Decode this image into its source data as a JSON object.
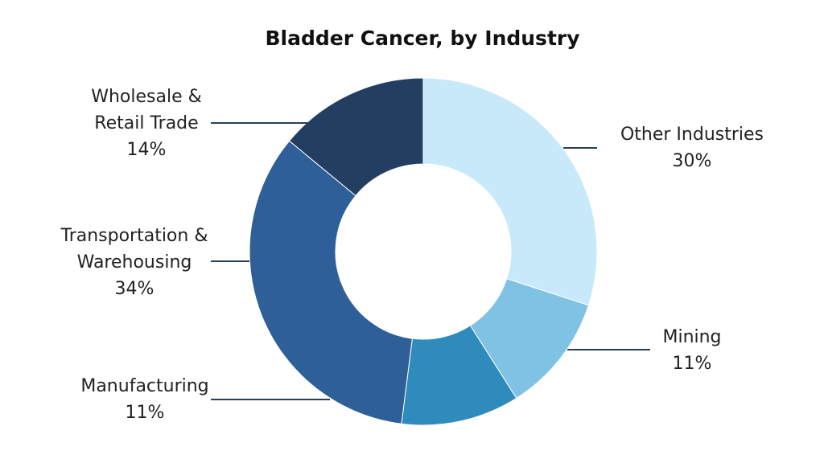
{
  "chart_data": {
    "type": "pie",
    "title": "Bladder Cancer, by Industry",
    "unit": "%",
    "slices": [
      {
        "label": "Other Industries",
        "value": 30,
        "color": "#c7e9f9"
      },
      {
        "label": "Mining",
        "value": 11,
        "color": "#80c2e4"
      },
      {
        "label": "Manufacturing",
        "value": 11,
        "color": "#2f8bbc"
      },
      {
        "label": "Transportation & Warehousing",
        "value": 34,
        "color": "#2e5f98"
      },
      {
        "label": "Wholesale & Retail Trade",
        "value": 14,
        "color": "#223f62"
      }
    ],
    "label_text": [
      {
        "lines": [
          "Other Industries"
        ],
        "value": "30%"
      },
      {
        "lines": [
          "Mining"
        ],
        "value": "11%"
      },
      {
        "lines": [
          "Manufacturing"
        ],
        "value": "11%"
      },
      {
        "lines": [
          "Transportation &",
          "Warehousing"
        ],
        "value": "34%"
      },
      {
        "lines": [
          "Wholesale &",
          "Retail Trade"
        ],
        "value": "14%"
      }
    ]
  }
}
